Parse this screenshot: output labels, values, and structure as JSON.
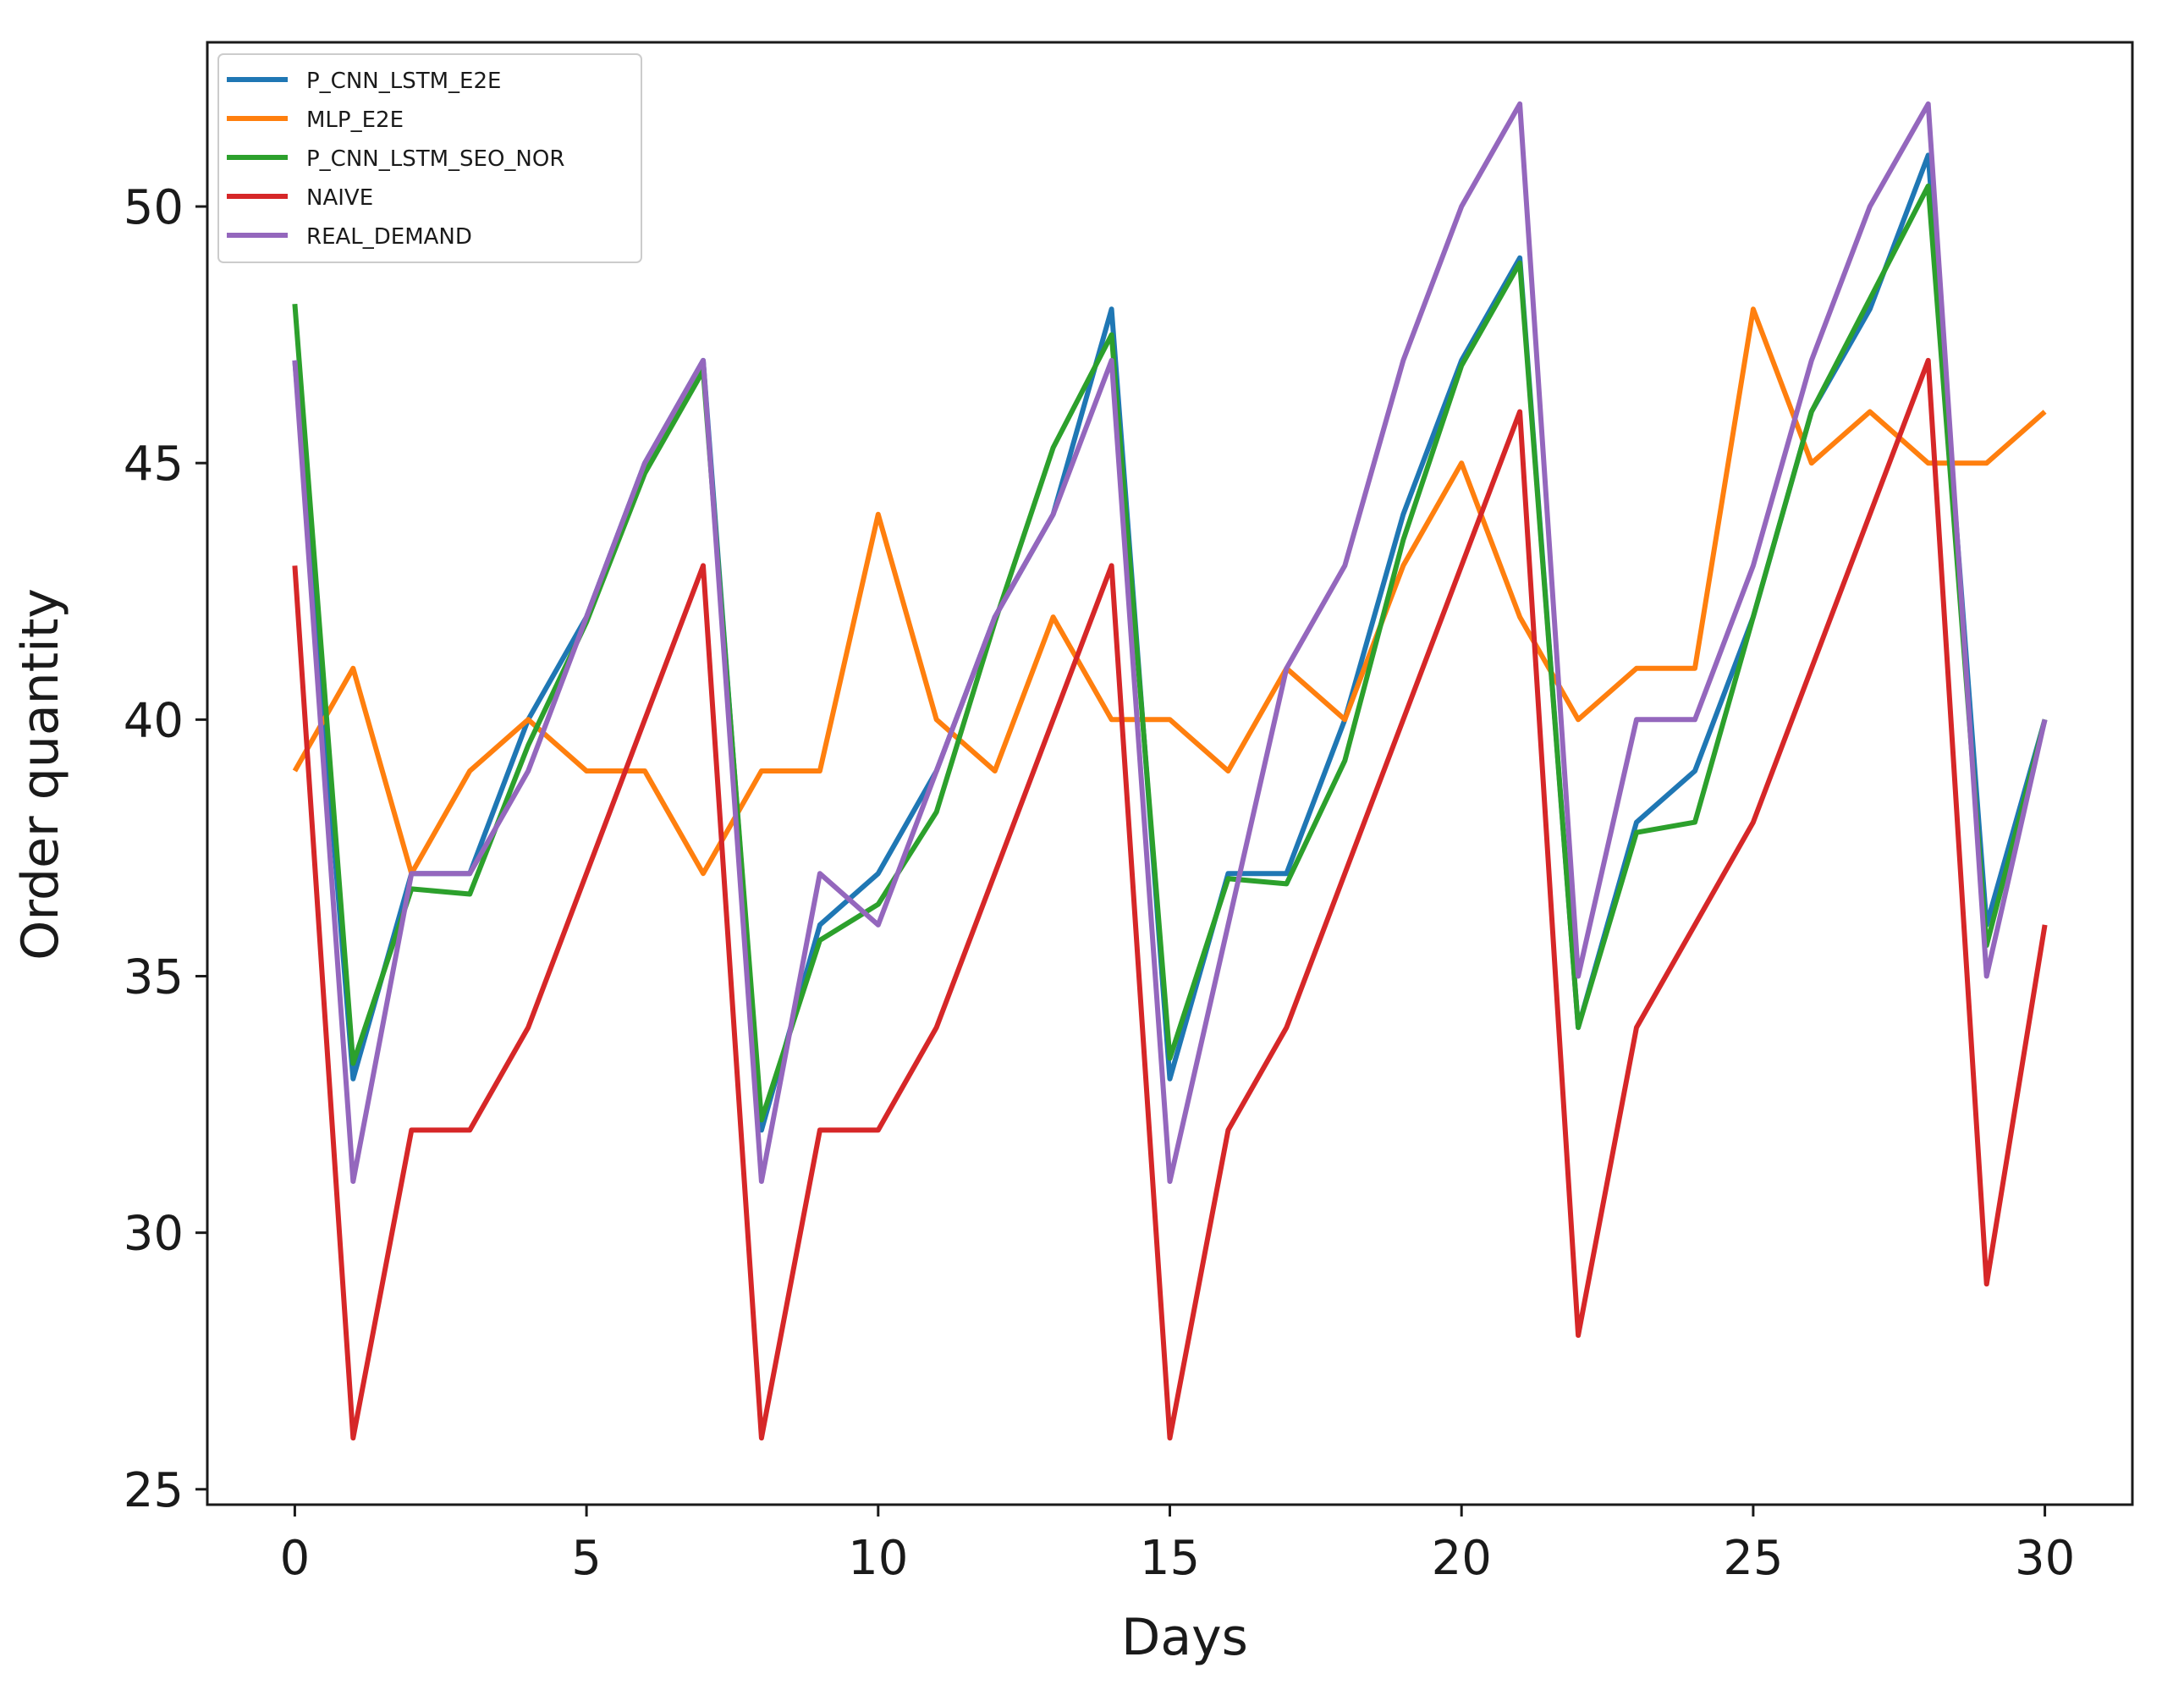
{
  "chart_data": {
    "type": "line",
    "title": "",
    "xlabel": "Days",
    "ylabel": "Order quantity",
    "xlim": [
      -1.5,
      31.5
    ],
    "ylim": [
      24.7,
      53.2
    ],
    "xticks": [
      0,
      5,
      10,
      15,
      20,
      25,
      30
    ],
    "yticks": [
      25,
      30,
      35,
      40,
      45,
      50
    ],
    "grid": false,
    "legend_position": "top-left",
    "x": [
      0,
      1,
      2,
      3,
      4,
      5,
      6,
      7,
      8,
      9,
      10,
      11,
      12,
      13,
      14,
      15,
      16,
      17,
      18,
      19,
      20,
      21,
      22,
      23,
      24,
      25,
      26,
      27,
      28,
      29,
      30
    ],
    "series": [
      {
        "name": "P_CNN_LSTM_E2E",
        "color": "#1f77b4",
        "values": [
          47,
          33,
          37,
          37,
          40,
          42,
          45,
          47,
          32,
          36,
          37,
          39,
          42,
          44,
          48,
          33,
          37,
          37,
          40,
          44,
          47,
          49,
          34,
          38,
          39,
          42,
          46,
          48,
          51,
          36,
          40
        ]
      },
      {
        "name": "MLP_E2E",
        "color": "#ff7f0e",
        "values": [
          39,
          41,
          37,
          39,
          40,
          39,
          39,
          37,
          39,
          39,
          44,
          40,
          39,
          42,
          40,
          40,
          39,
          41,
          40,
          43,
          45,
          42,
          40,
          41,
          41,
          48,
          45,
          46,
          45,
          45,
          46
        ]
      },
      {
        "name": "P_CNN_LSTM_SEO_NOR",
        "color": "#2ca02c",
        "values": [
          48.1,
          33.3,
          36.7,
          36.6,
          39.5,
          41.9,
          44.8,
          46.8,
          32.2,
          35.7,
          36.4,
          38.2,
          41.9,
          45.3,
          47.5,
          33.4,
          36.9,
          36.8,
          39.2,
          43.5,
          46.9,
          48.9,
          34,
          37.8,
          38,
          42,
          46,
          48.2,
          50.4,
          35.6,
          40
        ]
      },
      {
        "name": "NAIVE",
        "color": "#d62728",
        "values": [
          43,
          26,
          32,
          32,
          34,
          37,
          40,
          43,
          26,
          32,
          32,
          34,
          37,
          40,
          43,
          26,
          32,
          34,
          37,
          40,
          43,
          46,
          28,
          34,
          36,
          38,
          41,
          44,
          47,
          29,
          36
        ]
      },
      {
        "name": "REAL_DEMAND",
        "color": "#9467bd",
        "values": [
          47,
          31,
          37,
          37,
          39,
          42,
          45,
          47,
          31,
          37,
          36,
          39,
          42,
          44,
          47,
          31,
          36,
          41,
          43,
          47,
          50,
          52,
          35,
          40,
          40,
          43,
          47,
          50,
          52,
          35,
          40
        ]
      }
    ]
  }
}
